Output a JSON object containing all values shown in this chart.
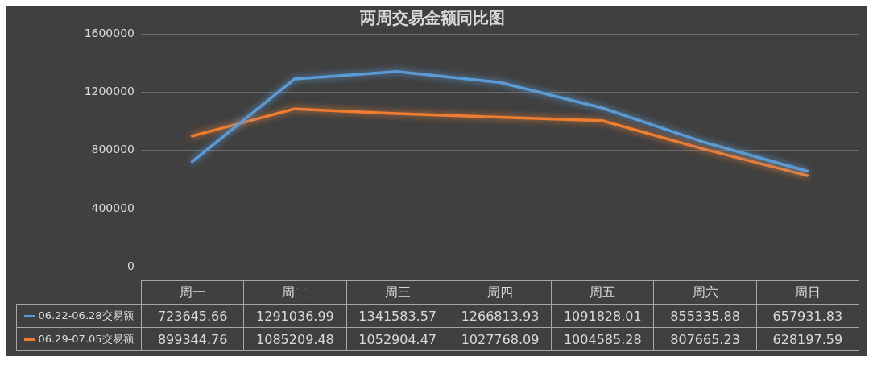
{
  "chart_data": {
    "type": "line",
    "title": "两周交易金额同比图",
    "categories": [
      "周一",
      "周二",
      "周三",
      "周四",
      "周五",
      "周六",
      "周日"
    ],
    "series": [
      {
        "name": "06.22-06.28交易额",
        "color": "#5b9bd5",
        "values": [
          723645.66,
          1291036.99,
          1341583.57,
          1266813.93,
          1091828.01,
          855335.88,
          657931.83
        ]
      },
      {
        "name": "06.29-07.05交易额",
        "color": "#ed7d31",
        "values": [
          899344.76,
          1085209.48,
          1052904.47,
          1027768.09,
          1004585.28,
          807665.23,
          628197.59
        ]
      }
    ],
    "ylim": [
      0,
      1600000
    ],
    "yticks": [
      0,
      400000,
      800000,
      1200000,
      1600000
    ],
    "grid": "y",
    "legend": "bottom",
    "marker": "none",
    "line_style": "solid",
    "data_labels": true
  }
}
